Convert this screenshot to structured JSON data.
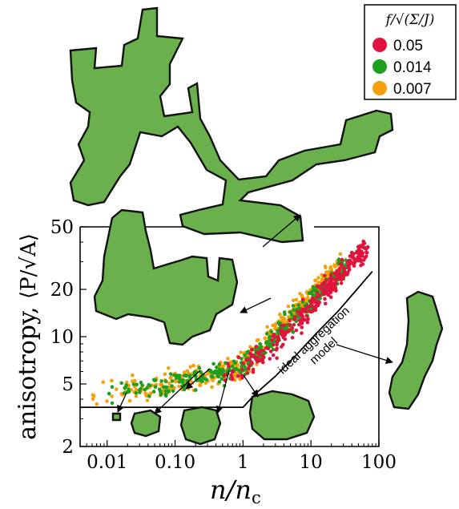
{
  "chart_data": {
    "type": "scatter",
    "xlabel": "n/n",
    "xlabel_sub": "c",
    "ylabel": "anisotropy,",
    "ylabel_math": "⟨P/√A⟩",
    "x_scale": "log",
    "y_scale": "log",
    "xlim": [
      0.004,
      100
    ],
    "ylim": [
      2,
      50
    ],
    "x_ticks": [
      {
        "value": 0.01,
        "label": "0.01"
      },
      {
        "value": 0.1,
        "label": "0.10"
      },
      {
        "value": 1,
        "label": "1"
      },
      {
        "value": 10,
        "label": "10"
      },
      {
        "value": 100,
        "label": "100"
      }
    ],
    "y_ticks": [
      {
        "value": 2,
        "label": "2"
      },
      {
        "value": 5,
        "label": "5"
      },
      {
        "value": 10,
        "label": "10"
      },
      {
        "value": 20,
        "label": "20"
      },
      {
        "value": 50,
        "label": "50"
      }
    ],
    "legend": {
      "title": "f/√(Σ/J)",
      "placement": "top-right",
      "entries": [
        {
          "label": "0.05",
          "color": "#e0143c"
        },
        {
          "label": "0.014",
          "color": "#1ea01e"
        },
        {
          "label": "0.007",
          "color": "#f5a00a"
        }
      ]
    },
    "series": [
      {
        "label": "0.05",
        "color": "#e0143c",
        "trend": [
          [
            0.5,
            5.6
          ],
          [
            1,
            6.2
          ],
          [
            2,
            7.8
          ],
          [
            5,
            11
          ],
          [
            10,
            15.5
          ],
          [
            20,
            22
          ],
          [
            40,
            30
          ],
          [
            70,
            37
          ]
        ],
        "scatter": 0.08
      },
      {
        "label": "0.014",
        "color": "#1ea01e",
        "trend": [
          [
            0.008,
            4.3
          ],
          [
            0.05,
            4.8
          ],
          [
            0.2,
            5.4
          ],
          [
            0.6,
            5.9
          ],
          [
            1,
            6.5
          ],
          [
            2,
            8.5
          ],
          [
            5,
            12.5
          ],
          [
            10,
            17
          ],
          [
            20,
            23
          ],
          [
            35,
            29
          ]
        ],
        "scatter": 0.07
      },
      {
        "label": "0.007",
        "color": "#f5a00a",
        "trend": [
          [
            0.006,
            4.3
          ],
          [
            0.02,
            4.6
          ],
          [
            0.1,
            5.2
          ],
          [
            0.4,
            5.6
          ],
          [
            1,
            6.6
          ],
          [
            2,
            9
          ],
          [
            5,
            13.5
          ],
          [
            10,
            18
          ],
          [
            20,
            25
          ],
          [
            30,
            29
          ]
        ],
        "scatter": 0.07
      }
    ],
    "model_curve": {
      "label": "ideal aggregation model",
      "points": [
        [
          0.004,
          3.55
        ],
        [
          1,
          3.55
        ],
        [
          1.5,
          4.3
        ],
        [
          3,
          5.6
        ],
        [
          6,
          7.6
        ],
        [
          12,
          10.5
        ],
        [
          25,
          14.5
        ],
        [
          50,
          20.5
        ],
        [
          80,
          26
        ]
      ]
    },
    "annotations": [
      {
        "text": "ideal aggregation",
        "rotation": -43
      },
      {
        "text": "model",
        "rotation": -43
      }
    ]
  },
  "colors": {
    "cluster_fill": "#6ab04c",
    "cluster_outline": "#111111"
  }
}
